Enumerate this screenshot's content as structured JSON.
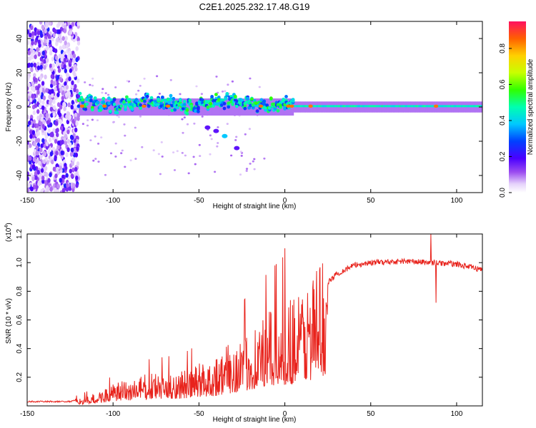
{
  "title": "C2E1.2025.232.17.48.G19",
  "chart_data": [
    {
      "type": "heatmap",
      "title": "C2E1.2025.232.17.48.G19",
      "xlabel": "Height of straight line (km)",
      "ylabel": "Frequency (Hz)",
      "xlim": [
        -150,
        115
      ],
      "ylim": [
        -50,
        50
      ],
      "x_ticks": [
        -150,
        -100,
        -50,
        0,
        50,
        100
      ],
      "y_ticks": [
        -40,
        -20,
        0,
        20,
        40
      ],
      "colorbar": {
        "label": "Normalized spectral amplitude",
        "range": [
          0,
          0.95
        ],
        "ticks": [
          0.0,
          0.2,
          0.4,
          0.6,
          0.8
        ]
      },
      "features": {
        "noise_region_x": [
          -150,
          -120
        ],
        "main_band_center_hz": 0,
        "secondary_trace": [
          {
            "x": -45,
            "y": -12
          },
          {
            "x": -40,
            "y": -14
          },
          {
            "x": -35,
            "y": -17
          },
          {
            "x": -28,
            "y": -24
          }
        ]
      }
    },
    {
      "type": "line",
      "xlabel": "Height of straight line (km)",
      "ylabel": "SNR (10 * v/v)",
      "y_scale_label": "(x10^4)",
      "xlim": [
        -150,
        115
      ],
      "ylim": [
        0,
        1.2
      ],
      "x_ticks": [
        -150,
        -100,
        -50,
        0,
        50,
        100
      ],
      "y_ticks": [
        0.2,
        0.4,
        0.6,
        0.8,
        1.0,
        1.2
      ],
      "series": [
        {
          "name": "SNR",
          "color": "#e8231c",
          "envelope": [
            {
              "x": -150,
              "y": 0.03
            },
            {
              "x": -125,
              "y": 0.03
            },
            {
              "x": -110,
              "y": 0.07
            },
            {
              "x": -100,
              "y": 0.12
            },
            {
              "x": -80,
              "y": 0.18
            },
            {
              "x": -60,
              "y": 0.2
            },
            {
              "x": -40,
              "y": 0.28
            },
            {
              "x": -25,
              "y": 0.4
            },
            {
              "x": -15,
              "y": 0.48
            },
            {
              "x": -5,
              "y": 0.55
            },
            {
              "x": 5,
              "y": 0.62
            },
            {
              "x": 15,
              "y": 0.72
            },
            {
              "x": 22,
              "y": 0.82
            },
            {
              "x": 30,
              "y": 0.92
            },
            {
              "x": 40,
              "y": 0.98
            },
            {
              "x": 50,
              "y": 1.0
            },
            {
              "x": 70,
              "y": 1.01
            },
            {
              "x": 85,
              "y": 1.0
            },
            {
              "x": 100,
              "y": 0.99
            },
            {
              "x": 115,
              "y": 0.95
            }
          ],
          "notable_points": [
            {
              "x": 0,
              "y": 1.1
            },
            {
              "x": 85,
              "y": 1.2
            },
            {
              "x": 88,
              "y": 0.72
            }
          ]
        }
      ]
    }
  ],
  "colors": {
    "line": "#e8231c",
    "axis": "#000000"
  }
}
